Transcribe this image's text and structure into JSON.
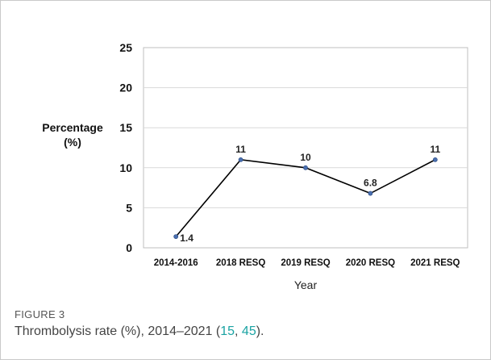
{
  "chart_data": {
    "type": "line",
    "categories": [
      "2014-2016",
      "2018 RESQ",
      "2019 RESQ",
      "2020 RESQ",
      "2021 RESQ"
    ],
    "series": [
      {
        "values": [
          1.4,
          11,
          10,
          6.8,
          11
        ],
        "color": "#000000",
        "marker_color": "#4a6fb0"
      }
    ],
    "data_labels": [
      "1.4",
      "11",
      "10",
      "6.8",
      "11"
    ],
    "xlabel": "Year",
    "ylabel": [
      "Percentage",
      "(%)"
    ],
    "ylim": [
      0,
      25
    ],
    "yticks": [
      "0",
      "5",
      "10",
      "15",
      "20",
      "25"
    ],
    "grid": true
  },
  "caption": {
    "label": "FIGURE 3",
    "text_before": "Thrombolysis rate (%), 2014–2021 (",
    "ref1": "15",
    "sep": ", ",
    "ref2": "45",
    "text_after": ")."
  }
}
